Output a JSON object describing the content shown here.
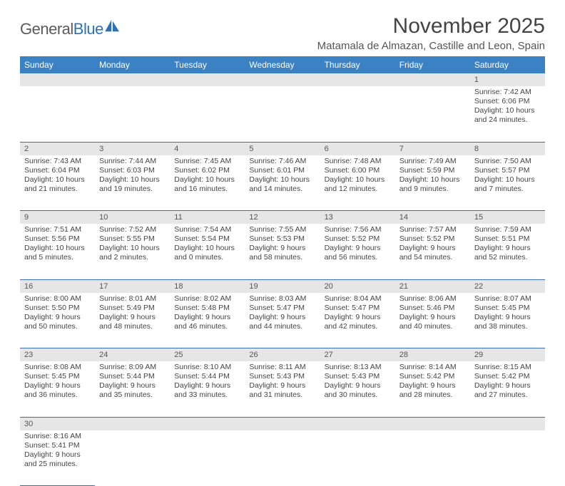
{
  "logo": {
    "word1": "General",
    "word2": "Blue"
  },
  "title": "November 2025",
  "location": "Matamala de Almazan, Castille and Leon, Spain",
  "colors": {
    "header_bg": "#3b82c4",
    "header_fg": "#ffffff",
    "daynum_bg": "#e6e6e6",
    "rule": "#3b6fa7",
    "logo_blue": "#2d72b5"
  },
  "weekdays": [
    "Sunday",
    "Monday",
    "Tuesday",
    "Wednesday",
    "Thursday",
    "Friday",
    "Saturday"
  ],
  "weeks": [
    [
      null,
      null,
      null,
      null,
      null,
      null,
      {
        "n": "1",
        "sr": "Sunrise: 7:42 AM",
        "ss": "Sunset: 6:06 PM",
        "d1": "Daylight: 10 hours",
        "d2": "and 24 minutes."
      }
    ],
    [
      {
        "n": "2",
        "sr": "Sunrise: 7:43 AM",
        "ss": "Sunset: 6:04 PM",
        "d1": "Daylight: 10 hours",
        "d2": "and 21 minutes."
      },
      {
        "n": "3",
        "sr": "Sunrise: 7:44 AM",
        "ss": "Sunset: 6:03 PM",
        "d1": "Daylight: 10 hours",
        "d2": "and 19 minutes."
      },
      {
        "n": "4",
        "sr": "Sunrise: 7:45 AM",
        "ss": "Sunset: 6:02 PM",
        "d1": "Daylight: 10 hours",
        "d2": "and 16 minutes."
      },
      {
        "n": "5",
        "sr": "Sunrise: 7:46 AM",
        "ss": "Sunset: 6:01 PM",
        "d1": "Daylight: 10 hours",
        "d2": "and 14 minutes."
      },
      {
        "n": "6",
        "sr": "Sunrise: 7:48 AM",
        "ss": "Sunset: 6:00 PM",
        "d1": "Daylight: 10 hours",
        "d2": "and 12 minutes."
      },
      {
        "n": "7",
        "sr": "Sunrise: 7:49 AM",
        "ss": "Sunset: 5:59 PM",
        "d1": "Daylight: 10 hours",
        "d2": "and 9 minutes."
      },
      {
        "n": "8",
        "sr": "Sunrise: 7:50 AM",
        "ss": "Sunset: 5:57 PM",
        "d1": "Daylight: 10 hours",
        "d2": "and 7 minutes."
      }
    ],
    [
      {
        "n": "9",
        "sr": "Sunrise: 7:51 AM",
        "ss": "Sunset: 5:56 PM",
        "d1": "Daylight: 10 hours",
        "d2": "and 5 minutes."
      },
      {
        "n": "10",
        "sr": "Sunrise: 7:52 AM",
        "ss": "Sunset: 5:55 PM",
        "d1": "Daylight: 10 hours",
        "d2": "and 2 minutes."
      },
      {
        "n": "11",
        "sr": "Sunrise: 7:54 AM",
        "ss": "Sunset: 5:54 PM",
        "d1": "Daylight: 10 hours",
        "d2": "and 0 minutes."
      },
      {
        "n": "12",
        "sr": "Sunrise: 7:55 AM",
        "ss": "Sunset: 5:53 PM",
        "d1": "Daylight: 9 hours",
        "d2": "and 58 minutes."
      },
      {
        "n": "13",
        "sr": "Sunrise: 7:56 AM",
        "ss": "Sunset: 5:52 PM",
        "d1": "Daylight: 9 hours",
        "d2": "and 56 minutes."
      },
      {
        "n": "14",
        "sr": "Sunrise: 7:57 AM",
        "ss": "Sunset: 5:52 PM",
        "d1": "Daylight: 9 hours",
        "d2": "and 54 minutes."
      },
      {
        "n": "15",
        "sr": "Sunrise: 7:59 AM",
        "ss": "Sunset: 5:51 PM",
        "d1": "Daylight: 9 hours",
        "d2": "and 52 minutes."
      }
    ],
    [
      {
        "n": "16",
        "sr": "Sunrise: 8:00 AM",
        "ss": "Sunset: 5:50 PM",
        "d1": "Daylight: 9 hours",
        "d2": "and 50 minutes."
      },
      {
        "n": "17",
        "sr": "Sunrise: 8:01 AM",
        "ss": "Sunset: 5:49 PM",
        "d1": "Daylight: 9 hours",
        "d2": "and 48 minutes."
      },
      {
        "n": "18",
        "sr": "Sunrise: 8:02 AM",
        "ss": "Sunset: 5:48 PM",
        "d1": "Daylight: 9 hours",
        "d2": "and 46 minutes."
      },
      {
        "n": "19",
        "sr": "Sunrise: 8:03 AM",
        "ss": "Sunset: 5:47 PM",
        "d1": "Daylight: 9 hours",
        "d2": "and 44 minutes."
      },
      {
        "n": "20",
        "sr": "Sunrise: 8:04 AM",
        "ss": "Sunset: 5:47 PM",
        "d1": "Daylight: 9 hours",
        "d2": "and 42 minutes."
      },
      {
        "n": "21",
        "sr": "Sunrise: 8:06 AM",
        "ss": "Sunset: 5:46 PM",
        "d1": "Daylight: 9 hours",
        "d2": "and 40 minutes."
      },
      {
        "n": "22",
        "sr": "Sunrise: 8:07 AM",
        "ss": "Sunset: 5:45 PM",
        "d1": "Daylight: 9 hours",
        "d2": "and 38 minutes."
      }
    ],
    [
      {
        "n": "23",
        "sr": "Sunrise: 8:08 AM",
        "ss": "Sunset: 5:45 PM",
        "d1": "Daylight: 9 hours",
        "d2": "and 36 minutes."
      },
      {
        "n": "24",
        "sr": "Sunrise: 8:09 AM",
        "ss": "Sunset: 5:44 PM",
        "d1": "Daylight: 9 hours",
        "d2": "and 35 minutes."
      },
      {
        "n": "25",
        "sr": "Sunrise: 8:10 AM",
        "ss": "Sunset: 5:44 PM",
        "d1": "Daylight: 9 hours",
        "d2": "and 33 minutes."
      },
      {
        "n": "26",
        "sr": "Sunrise: 8:11 AM",
        "ss": "Sunset: 5:43 PM",
        "d1": "Daylight: 9 hours",
        "d2": "and 31 minutes."
      },
      {
        "n": "27",
        "sr": "Sunrise: 8:13 AM",
        "ss": "Sunset: 5:43 PM",
        "d1": "Daylight: 9 hours",
        "d2": "and 30 minutes."
      },
      {
        "n": "28",
        "sr": "Sunrise: 8:14 AM",
        "ss": "Sunset: 5:42 PM",
        "d1": "Daylight: 9 hours",
        "d2": "and 28 minutes."
      },
      {
        "n": "29",
        "sr": "Sunrise: 8:15 AM",
        "ss": "Sunset: 5:42 PM",
        "d1": "Daylight: 9 hours",
        "d2": "and 27 minutes."
      }
    ],
    [
      {
        "n": "30",
        "sr": "Sunrise: 8:16 AM",
        "ss": "Sunset: 5:41 PM",
        "d1": "Daylight: 9 hours",
        "d2": "and 25 minutes."
      },
      null,
      null,
      null,
      null,
      null,
      null
    ]
  ]
}
